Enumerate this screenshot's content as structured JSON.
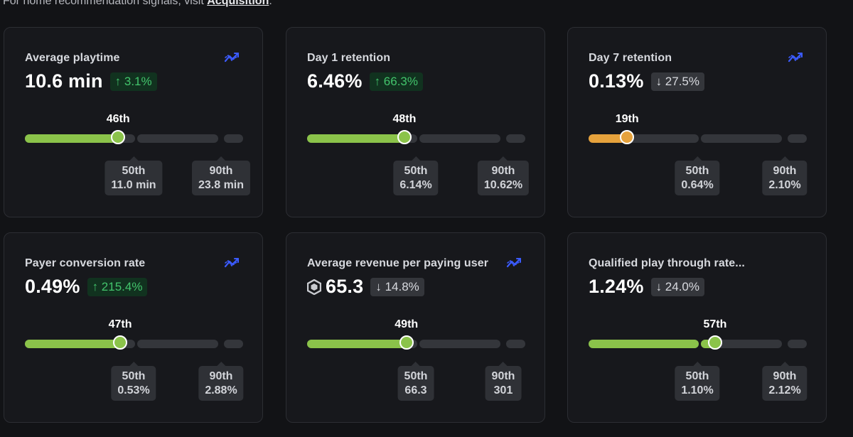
{
  "header": {
    "note_prefix": "For home recommendation signals, visit ",
    "link": "Acquisition",
    "note_suffix": "."
  },
  "colors": {
    "green": "#8bc34a",
    "orange": "#e6a23c",
    "trend_icon": "#3b5bff"
  },
  "cards": [
    {
      "title": "Average playtime",
      "value": "10.6 min",
      "delta": "↑ 3.1%",
      "delta_dir": "up",
      "trend_icon": true,
      "robux_icon": false,
      "percentile_label": "46th",
      "percentile": 46,
      "fill_color": "green",
      "p50": {
        "label": "50th",
        "value": "11.0 min"
      },
      "p90": {
        "label": "90th",
        "value": "23.8 min"
      }
    },
    {
      "title": "Day 1 retention",
      "value": "6.46%",
      "delta": "↑ 66.3%",
      "delta_dir": "up",
      "trend_icon": false,
      "robux_icon": false,
      "percentile_label": "48th",
      "percentile": 48,
      "fill_color": "green",
      "p50": {
        "label": "50th",
        "value": "6.14%"
      },
      "p90": {
        "label": "90th",
        "value": "10.62%"
      }
    },
    {
      "title": "Day 7 retention",
      "value": "0.13%",
      "delta": "↓ 27.5%",
      "delta_dir": "down",
      "trend_icon": true,
      "robux_icon": false,
      "percentile_label": "19th",
      "percentile": 19,
      "fill_color": "orange",
      "p50": {
        "label": "50th",
        "value": "0.64%"
      },
      "p90": {
        "label": "90th",
        "value": "2.10%"
      }
    },
    {
      "title": "Payer conversion rate",
      "value": "0.49%",
      "delta": "↑ 215.4%",
      "delta_dir": "up",
      "trend_icon": true,
      "robux_icon": false,
      "percentile_label": "47th",
      "percentile": 47,
      "fill_color": "green",
      "p50": {
        "label": "50th",
        "value": "0.53%"
      },
      "p90": {
        "label": "90th",
        "value": "2.88%"
      }
    },
    {
      "title": "Average revenue per paying user",
      "value": "65.3",
      "delta": "↓ 14.8%",
      "delta_dir": "down",
      "trend_icon": true,
      "robux_icon": true,
      "percentile_label": "49th",
      "percentile": 49,
      "fill_color": "green",
      "p50": {
        "label": "50th",
        "value": "66.3"
      },
      "p90": {
        "label": "90th",
        "value": "301"
      }
    },
    {
      "title": "Qualified play through rate...",
      "value": "1.24%",
      "delta": "↓ 24.0%",
      "delta_dir": "down",
      "trend_icon": false,
      "robux_icon": false,
      "percentile_label": "57th",
      "percentile": 57,
      "fill_color": "green",
      "p50": {
        "label": "50th",
        "value": "1.10%"
      },
      "p90": {
        "label": "90th",
        "value": "2.12%"
      }
    }
  ]
}
